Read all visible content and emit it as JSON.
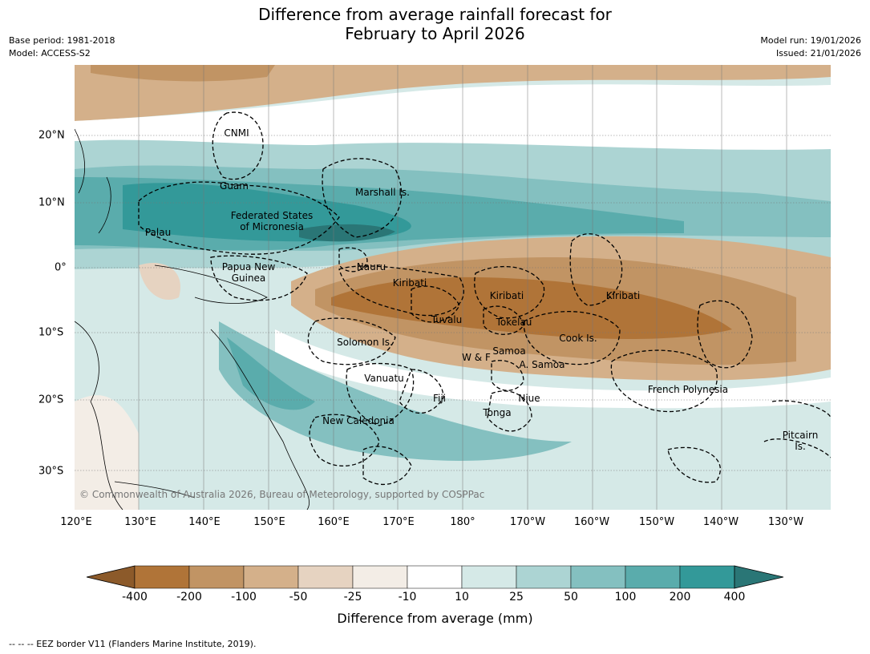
{
  "title": {
    "line1": "Difference from average rainfall forecast for",
    "line2": "February to April 2026"
  },
  "meta": {
    "base_period": "Base period: 1981-2018",
    "model": "Model: ACCESS-S2",
    "model_run": "Model run: 19/01/2026",
    "issued": "Issued: 21/01/2026"
  },
  "axes": {
    "lon_labels": [
      "120°E",
      "130°E",
      "140°E",
      "150°E",
      "160°E",
      "170°E",
      "180°",
      "170°W",
      "160°W",
      "150°W",
      "140°W",
      "130°W"
    ],
    "lat_labels": [
      "20°N",
      "10°N",
      "0°",
      "10°S",
      "20°S",
      "30°S"
    ]
  },
  "places": {
    "cnmi": "CNMI",
    "guam": "Guam",
    "marshall": "Marshall Is.",
    "fsm_1": "Federated States",
    "fsm_2": "of Micronesia",
    "palau": "Palau",
    "png_1": "Papua New",
    "png_2": "Guinea",
    "nauru": "Nauru",
    "kiribati_w": "Kiribati",
    "kiribati_c": "Kiribati",
    "kiribati_e": "Kiribati",
    "tuvalu": "Tuvalu",
    "tokelau": "Tokelau",
    "cook": "Cook Is.",
    "solomon": "Solomon Is.",
    "wf": "W & F",
    "samoa": "Samoa",
    "asamoa": "A. Samoa",
    "vanuatu": "Vanuatu",
    "fiji": "Fiji",
    "niue": "Niue",
    "fp": "French Polynesia",
    "tonga": "Tonga",
    "newcal": "New Caledonia",
    "pitcairn_1": "Pitcairn",
    "pitcairn_2": "Is."
  },
  "copyright": "© Commonwealth of Australia 2026, Bureau of Meteorology, supported by COSPPac",
  "colorbar": {
    "label": "Difference from average (mm)",
    "ticks": [
      "-400",
      "-200",
      "-100",
      "-50",
      "-25",
      "-10",
      "10",
      "25",
      "50",
      "100",
      "200",
      "400"
    ],
    "colors": [
      "#8c5a2a",
      "#b07438",
      "#c19464",
      "#d4b08a",
      "#e6d3c1",
      "#f3ede6",
      "#ffffff",
      "#d5e9e7",
      "#acd4d3",
      "#84c0c0",
      "#5aacac",
      "#339999",
      "#2a7676"
    ]
  },
  "footer": "--  --  -- EEZ border V11 (Flanders Marine Institute, 2019)."
}
